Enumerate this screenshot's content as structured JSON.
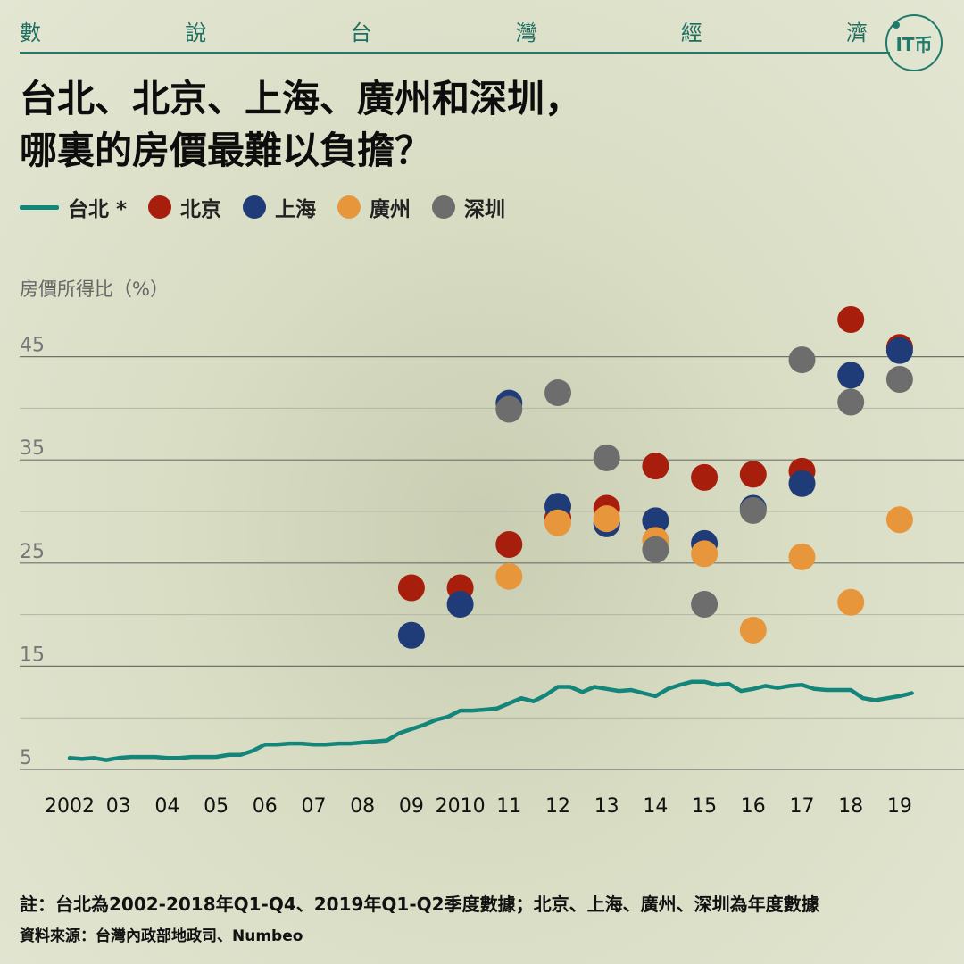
{
  "header": {
    "series_chars": [
      "數",
      "說",
      "台",
      "灣",
      "經",
      "濟"
    ],
    "logo_text": "IT币"
  },
  "title": {
    "line1": "台北、北京、上海、廣州和深圳，",
    "line2": "哪裏的房價最難以負擔？"
  },
  "legend": [
    {
      "name": "台北 *",
      "kind": "line",
      "color": "#14857a"
    },
    {
      "name": "北京",
      "kind": "dot",
      "color": "#a81e0c"
    },
    {
      "name": "上海",
      "kind": "dot",
      "color": "#1f3c78"
    },
    {
      "name": "廣州",
      "kind": "dot",
      "color": "#e8963c"
    },
    {
      "name": "深圳",
      "kind": "dot",
      "color": "#6d6d6d"
    }
  ],
  "notes": {
    "note": "註：台北為2002-2018年Q1-Q4、2019年Q1-Q2季度數據；北京、上海、廣州、深圳為年度數據",
    "source": "資料來源：台灣內政部地政司、Numbeo"
  },
  "chart_data": {
    "type": "line",
    "ylabel": "房價所得比（%）",
    "ylim": [
      5,
      48
    ],
    "yticks": [
      5,
      15,
      25,
      35,
      45
    ],
    "grid": true,
    "x_ticks": [
      {
        "year": 2002,
        "label": "2002"
      },
      {
        "year": 2003,
        "label": "03"
      },
      {
        "year": 2004,
        "label": "04"
      },
      {
        "year": 2005,
        "label": "05"
      },
      {
        "year": 2006,
        "label": "06"
      },
      {
        "year": 2007,
        "label": "07"
      },
      {
        "year": 2008,
        "label": "08"
      },
      {
        "year": 2009,
        "label": "09"
      },
      {
        "year": 2010,
        "label": "2010"
      },
      {
        "year": 2011,
        "label": "11"
      },
      {
        "year": 2012,
        "label": "12"
      },
      {
        "year": 2013,
        "label": "13"
      },
      {
        "year": 2014,
        "label": "14"
      },
      {
        "year": 2015,
        "label": "15"
      },
      {
        "year": 2016,
        "label": "16"
      },
      {
        "year": 2017,
        "label": "17"
      },
      {
        "year": 2018,
        "label": "18"
      },
      {
        "year": 2019,
        "label": "19"
      }
    ],
    "line_series": {
      "name": "台北",
      "color": "#14857a",
      "x": [
        2002.0,
        2002.25,
        2002.5,
        2002.75,
        2003.0,
        2003.25,
        2003.5,
        2003.75,
        2004.0,
        2004.25,
        2004.5,
        2004.75,
        2005.0,
        2005.25,
        2005.5,
        2005.75,
        2006.0,
        2006.25,
        2006.5,
        2006.75,
        2007.0,
        2007.25,
        2007.5,
        2007.75,
        2008.0,
        2008.25,
        2008.5,
        2008.75,
        2009.0,
        2009.25,
        2009.5,
        2009.75,
        2010.0,
        2010.25,
        2010.5,
        2010.75,
        2011.0,
        2011.25,
        2011.5,
        2011.75,
        2012.0,
        2012.25,
        2012.5,
        2012.75,
        2013.0,
        2013.25,
        2013.5,
        2013.75,
        2014.0,
        2014.25,
        2014.5,
        2014.75,
        2015.0,
        2015.25,
        2015.5,
        2015.75,
        2016.0,
        2016.25,
        2016.5,
        2016.75,
        2017.0,
        2017.25,
        2017.5,
        2017.75,
        2018.0,
        2018.25,
        2018.5,
        2018.75,
        2019.0,
        2019.25
      ],
      "values": [
        6.1,
        6.0,
        6.1,
        5.9,
        6.1,
        6.2,
        6.2,
        6.2,
        6.1,
        6.1,
        6.2,
        6.2,
        6.2,
        6.4,
        6.4,
        6.8,
        7.4,
        7.4,
        7.5,
        7.5,
        7.4,
        7.4,
        7.5,
        7.5,
        7.6,
        7.7,
        7.8,
        8.5,
        8.9,
        9.3,
        9.8,
        10.1,
        10.7,
        10.7,
        10.8,
        10.9,
        11.4,
        11.9,
        11.6,
        12.2,
        13.0,
        13.0,
        12.5,
        13.0,
        12.8,
        12.6,
        12.7,
        12.4,
        12.1,
        12.8,
        13.2,
        13.5,
        13.5,
        13.2,
        13.3,
        12.6,
        12.8,
        13.1,
        12.9,
        13.1,
        13.2,
        12.8,
        12.7,
        12.7,
        12.7,
        11.9,
        11.7,
        11.9,
        12.1,
        12.4
      ]
    },
    "dot_series": [
      {
        "name": "北京",
        "color": "#a81e0c",
        "points": [
          [
            2009,
            22.6
          ],
          [
            2010,
            22.6
          ],
          [
            2011,
            26.8
          ],
          [
            2012,
            29.4
          ],
          [
            2013,
            30.3
          ],
          [
            2014,
            34.4
          ],
          [
            2015,
            33.3
          ],
          [
            2016,
            33.6
          ],
          [
            2017,
            33.9
          ],
          [
            2018,
            48.6
          ],
          [
            2019,
            45.9
          ]
        ]
      },
      {
        "name": "上海",
        "color": "#1f3c78",
        "points": [
          [
            2009,
            18.0
          ],
          [
            2010,
            21.0
          ],
          [
            2011,
            40.5
          ],
          [
            2012,
            30.5
          ],
          [
            2013,
            28.8
          ],
          [
            2014,
            29.1
          ],
          [
            2015,
            26.9
          ],
          [
            2016,
            30.3
          ],
          [
            2017,
            32.7
          ],
          [
            2018,
            43.2
          ],
          [
            2019,
            45.6
          ]
        ]
      },
      {
        "name": "廣州",
        "color": "#e8963c",
        "points": [
          [
            2011,
            23.7
          ],
          [
            2012,
            28.9
          ],
          [
            2013,
            29.3
          ],
          [
            2014,
            27.2
          ],
          [
            2015,
            25.9
          ],
          [
            2016,
            18.5
          ],
          [
            2017,
            25.6
          ],
          [
            2018,
            21.2
          ],
          [
            2019,
            29.2
          ]
        ]
      },
      {
        "name": "深圳",
        "color": "#6d6d6d",
        "points": [
          [
            2011,
            39.9
          ],
          [
            2012,
            41.5
          ],
          [
            2013,
            35.2
          ],
          [
            2014,
            26.3
          ],
          [
            2015,
            21.0
          ],
          [
            2016,
            30.1
          ],
          [
            2017,
            44.7
          ],
          [
            2018,
            40.6
          ],
          [
            2019,
            42.8
          ]
        ]
      }
    ]
  }
}
